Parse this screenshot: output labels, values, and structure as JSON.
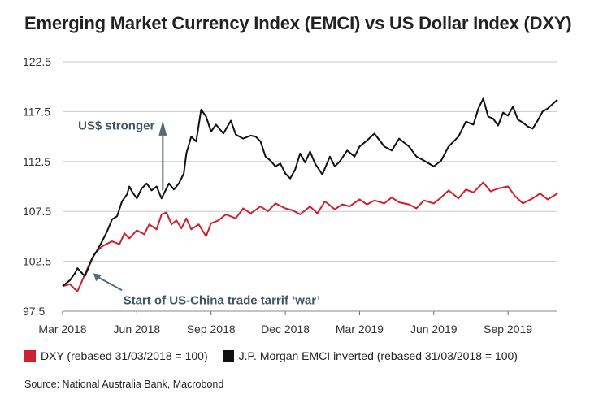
{
  "chart_data": {
    "type": "line",
    "title": "Emerging Market Currency Index (EMCI) vs US Dollar Index (DXY)",
    "xlabel": "",
    "ylabel": "",
    "ylim": [
      97.5,
      122.5
    ],
    "yticks": [
      "97.5",
      "102.5",
      "107.5",
      "112.5",
      "117.5",
      "122.5"
    ],
    "xticks": [
      "Mar 2018",
      "Jun 2018",
      "Sep 2018",
      "Dec 2018",
      "Mar 2019",
      "Jun 2019",
      "Sep 2019"
    ],
    "x_unit": "months since Mar 2018",
    "xlim": [
      0,
      20
    ],
    "series": [
      {
        "name": "DXY (rebased 31/03/2018 = 100)",
        "color": "#d0202e",
        "x": [
          0,
          0.3,
          0.5,
          0.6,
          0.75,
          0.9,
          1.1,
          1.3,
          1.6,
          2.0,
          2.3,
          2.5,
          2.7,
          3.0,
          3.3,
          3.5,
          3.8,
          4.0,
          4.2,
          4.4,
          4.6,
          4.8,
          5.0,
          5.2,
          5.5,
          5.8,
          6.0,
          6.3,
          6.6,
          7.0,
          7.3,
          7.6,
          8.0,
          8.3,
          8.6,
          9.0,
          9.3,
          9.6,
          10.0,
          10.3,
          10.6,
          11.0,
          11.3,
          11.6,
          12.0,
          12.3,
          12.6,
          13.0,
          13.3,
          13.6,
          14.0,
          14.3,
          14.6,
          15.0,
          15.3,
          15.6,
          16.0,
          16.3,
          16.6,
          17.0,
          17.3,
          17.6,
          18.0,
          18.3,
          18.6,
          19.0,
          19.3,
          19.6,
          20.0
        ],
        "values": [
          100.0,
          100.2,
          99.7,
          99.5,
          100.3,
          101.2,
          102.3,
          103.3,
          104.0,
          104.5,
          104.2,
          105.3,
          104.8,
          105.6,
          105.2,
          106.2,
          105.7,
          107.2,
          107.4,
          106.2,
          106.6,
          105.8,
          106.8,
          105.7,
          106.2,
          105.0,
          106.3,
          106.6,
          107.2,
          106.8,
          107.8,
          107.3,
          108.0,
          107.5,
          108.3,
          107.8,
          107.6,
          107.2,
          108.0,
          107.3,
          108.5,
          107.7,
          108.2,
          108.0,
          108.7,
          108.2,
          108.6,
          108.3,
          108.9,
          108.4,
          108.2,
          107.8,
          108.6,
          108.3,
          108.9,
          109.6,
          108.8,
          109.7,
          109.4,
          110.4,
          109.5,
          109.8,
          110.0,
          109.0,
          108.3,
          108.8,
          109.3,
          108.7,
          109.3
        ]
      },
      {
        "name": "J.P. Morgan EMCI inverted (rebased 31/03/2018 = 100)",
        "color": "#111111",
        "x": [
          0,
          0.3,
          0.5,
          0.6,
          0.75,
          0.9,
          1.0,
          1.2,
          1.4,
          1.6,
          1.8,
          2.0,
          2.2,
          2.4,
          2.6,
          2.7,
          2.8,
          3.0,
          3.2,
          3.4,
          3.6,
          3.8,
          4.0,
          4.1,
          4.3,
          4.5,
          4.7,
          4.9,
          5.0,
          5.2,
          5.4,
          5.6,
          5.8,
          6.0,
          6.2,
          6.5,
          6.8,
          7.0,
          7.3,
          7.6,
          7.8,
          8.0,
          8.2,
          8.4,
          8.6,
          8.8,
          9.0,
          9.2,
          9.4,
          9.6,
          9.8,
          10.0,
          10.2,
          10.5,
          10.8,
          11.0,
          11.2,
          11.5,
          11.8,
          12.0,
          12.3,
          12.6,
          13.0,
          13.3,
          13.6,
          14.0,
          14.3,
          14.6,
          15.0,
          15.3,
          15.6,
          16.0,
          16.3,
          16.6,
          16.8,
          17.0,
          17.2,
          17.4,
          17.6,
          17.8,
          18.0,
          18.2,
          18.4,
          18.6,
          18.8,
          19.0,
          19.2,
          19.4,
          19.6,
          20.0
        ],
        "values": [
          100.0,
          100.6,
          101.3,
          101.8,
          101.4,
          101.0,
          101.6,
          102.8,
          103.6,
          104.5,
          105.5,
          106.7,
          107.0,
          108.5,
          109.2,
          110.0,
          109.5,
          108.8,
          109.8,
          110.3,
          109.6,
          110.0,
          108.8,
          109.3,
          110.3,
          109.7,
          110.3,
          111.3,
          113.3,
          115.0,
          114.5,
          117.7,
          117.0,
          115.5,
          116.2,
          115.3,
          116.6,
          115.2,
          114.8,
          115.1,
          115.0,
          114.5,
          113.0,
          112.6,
          112.0,
          112.3,
          111.3,
          110.8,
          111.7,
          113.3,
          112.4,
          113.5,
          112.3,
          111.2,
          113.0,
          112.0,
          112.5,
          113.6,
          113.0,
          114.0,
          114.6,
          115.3,
          114.0,
          113.6,
          114.8,
          114.0,
          113.0,
          112.6,
          112.0,
          112.6,
          114.0,
          115.0,
          116.5,
          116.2,
          117.8,
          118.8,
          117.0,
          116.8,
          116.1,
          117.4,
          117.1,
          118.0,
          116.7,
          116.4,
          116.0,
          115.8,
          116.6,
          117.5,
          117.8,
          118.7
        ]
      }
    ],
    "annotations": [
      {
        "text": "US$ stronger",
        "x": 4.05,
        "y": 116.1,
        "arrow": "up"
      },
      {
        "text": "Start of US-China trade tarrif ‘war’",
        "x": 1.1,
        "y": 101.5,
        "arrow": "up-left"
      }
    ],
    "legend_placement": "bottom",
    "grid": true
  },
  "source": "Source: National Australia Bank, Macrobond"
}
